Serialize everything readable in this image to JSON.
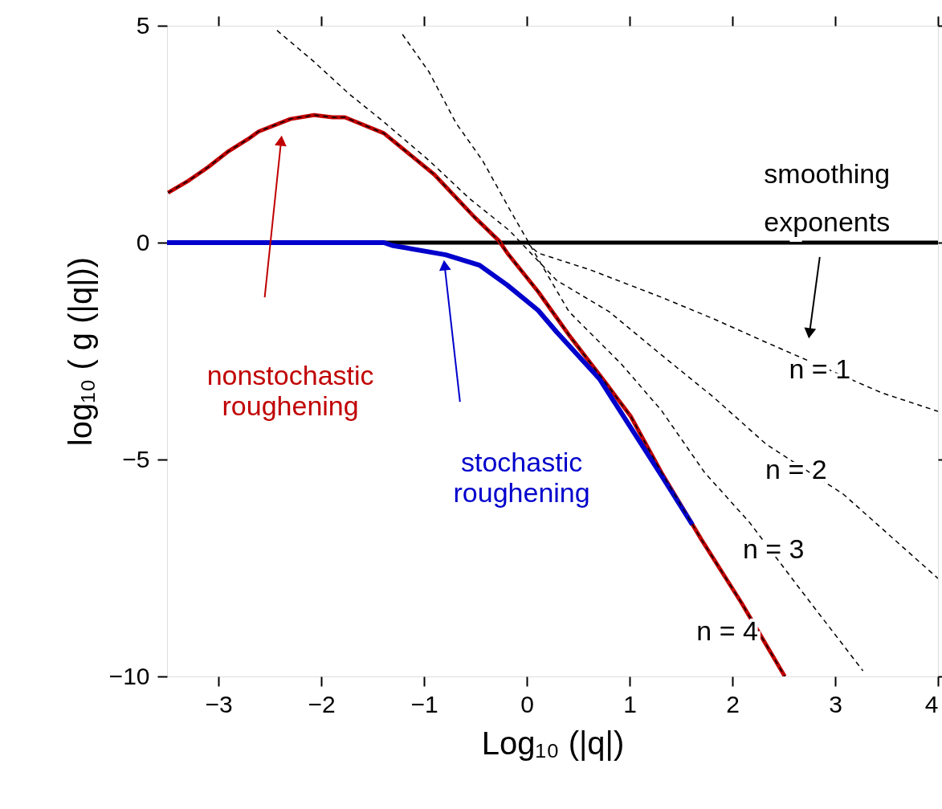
{
  "chart_data": {
    "type": "line",
    "xlabel": "Log₁₀ (|q|)",
    "ylabel": "log₁₀ ( g (|q|))",
    "xlim": [
      -3.5,
      4
    ],
    "ylim": [
      -10,
      5
    ],
    "xticks": [
      -3,
      -2,
      -1,
      0,
      1,
      2,
      3,
      4
    ],
    "yticks": [
      -10,
      -5,
      0,
      5
    ],
    "grid": false,
    "ref_lines": [
      {
        "axis": "y",
        "value": 0,
        "color": "#000000",
        "line_style": "solid"
      }
    ],
    "annotations": [
      "smoothing exponents"
    ],
    "series": [
      {
        "name": "nonstochastic\nroughening",
        "color": "#c00000",
        "line_style": "solid",
        "x": [
          -3.49,
          -3.29,
          -3.1,
          -2.9,
          -2.71,
          -2.61,
          -2.3,
          -2.07,
          -1.89,
          -1.77,
          -1.39,
          -0.9,
          -0.51,
          -0.27,
          -0.19,
          0.11,
          0.41,
          0.74,
          1.01,
          1.31,
          1.7,
          2.09,
          2.51
        ],
        "values": [
          1.15,
          1.43,
          1.74,
          2.11,
          2.39,
          2.56,
          2.85,
          2.94,
          2.89,
          2.89,
          2.52,
          1.57,
          0.59,
          0.04,
          -0.24,
          -1.13,
          -2.13,
          -3.15,
          -4.0,
          -5.3,
          -6.85,
          -8.31,
          -10.0
        ]
      },
      {
        "name": "stochastic\nroughening",
        "color": "#0000cc",
        "line_style": "solid",
        "x": [
          -3.5,
          -1.39,
          -1.3,
          -0.79,
          -0.46,
          -0.19,
          0.11,
          0.29,
          0.71,
          1.31,
          1.61
        ],
        "values": [
          0.0,
          0.0,
          -0.07,
          -0.28,
          -0.52,
          -0.98,
          -1.56,
          -2.06,
          -3.15,
          -5.37,
          -6.5
        ]
      },
      {
        "name": "n = 1",
        "color": "#000000",
        "line_style": "dashed",
        "x": [
          0.0,
          0.11,
          0.62,
          1.31,
          1.82,
          2.33,
          3.45,
          4.0
        ],
        "values": [
          0.0,
          -0.24,
          -0.63,
          -1.26,
          -1.76,
          -2.3,
          -3.46,
          -3.89
        ]
      },
      {
        "name": "n = 2",
        "color": "#000000",
        "line_style": "dashed",
        "x": [
          -2.43,
          -2.07,
          -1.73,
          -1.39,
          -0.95,
          -0.56,
          -0.17,
          0.29,
          0.8,
          1.31,
          1.82,
          2.33,
          3.08,
          4.0
        ],
        "values": [
          4.89,
          4.17,
          3.43,
          2.78,
          1.89,
          1.02,
          0.28,
          -0.87,
          -1.59,
          -2.59,
          -3.57,
          -4.65,
          -5.8,
          -7.74
        ]
      },
      {
        "name": "n = 3",
        "color": "#000000",
        "line_style": "dashed",
        "x": [
          -1.21,
          -0.95,
          -0.69,
          -0.43,
          -0.17,
          0.04,
          0.41,
          0.92,
          1.31,
          1.73,
          2.17,
          2.64,
          3.27
        ],
        "values": [
          4.8,
          3.93,
          2.76,
          1.89,
          0.78,
          -0.09,
          -1.59,
          -2.8,
          -3.87,
          -5.3,
          -6.46,
          -7.93,
          -9.87
        ]
      },
      {
        "name": "n = 4",
        "color": "#000000",
        "line_style": "dashed",
        "x": [
          -3.49,
          -3.29,
          -3.1,
          -2.9,
          -2.71,
          -2.61,
          -2.3,
          -2.07,
          -1.89,
          -1.77,
          -1.39,
          -0.9,
          -0.51,
          -0.27,
          -0.19,
          0.11,
          0.41,
          0.74,
          1.01,
          1.31,
          1.7,
          2.09,
          2.51
        ],
        "values": [
          1.15,
          1.43,
          1.74,
          2.11,
          2.39,
          2.56,
          2.85,
          2.94,
          2.89,
          2.89,
          2.52,
          1.57,
          0.59,
          0.04,
          -0.24,
          -1.13,
          -2.13,
          -3.15,
          -4.0,
          -5.3,
          -6.85,
          -8.31,
          -10.0
        ]
      }
    ]
  }
}
